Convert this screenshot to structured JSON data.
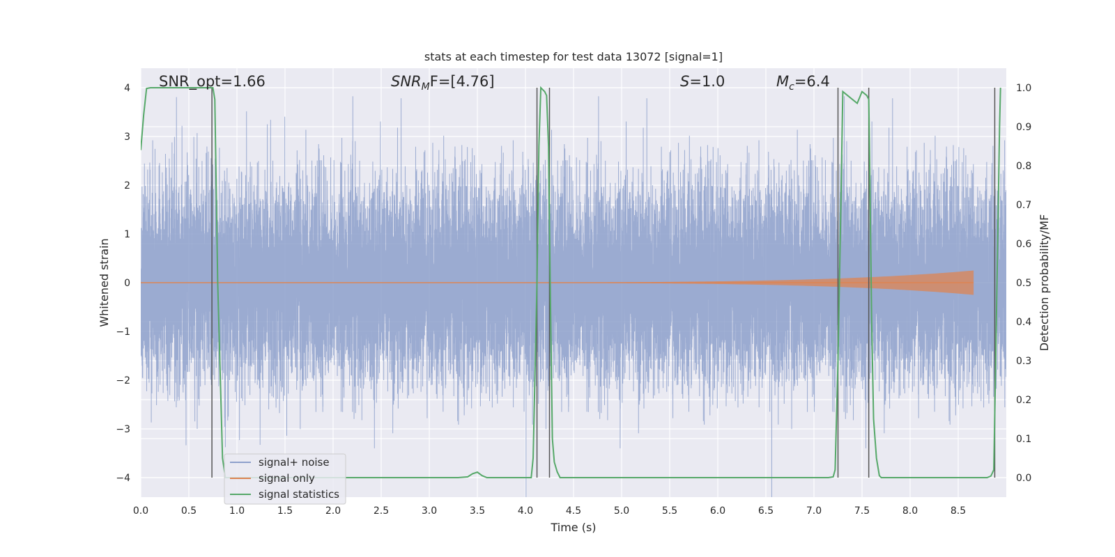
{
  "chart_data": {
    "type": "line",
    "title": "stats at each timestep for test data 13072 [signal=1]",
    "xlabel": "Time (s)",
    "ylabel_left": "Whitened strain",
    "ylabel_right": "Detection probability/MF",
    "xlim": [
      0.0,
      9.0
    ],
    "ylim_left": [
      -4.4,
      4.4
    ],
    "ylim_right": [
      -0.05,
      1.05
    ],
    "xticks": [
      0.0,
      0.5,
      1.0,
      1.5,
      2.0,
      2.5,
      3.0,
      3.5,
      4.0,
      4.5,
      5.0,
      5.5,
      6.0,
      6.5,
      7.0,
      7.5,
      8.0,
      8.5
    ],
    "xtick_labels": [
      "0.0",
      "0.5",
      "1.0",
      "1.5",
      "2.0",
      "2.5",
      "3.0",
      "3.5",
      "4.0",
      "4.5",
      "5.0",
      "5.5",
      "6.0",
      "6.5",
      "7.0",
      "7.5",
      "8.0",
      "8.5"
    ],
    "yticks_left": [
      4,
      3,
      2,
      1,
      0,
      -1,
      -2,
      -3,
      -4
    ],
    "ytick_labels_left": [
      "4",
      "3",
      "2",
      "1",
      "0",
      "−1",
      "−2",
      "−3",
      "−4"
    ],
    "yticks_right": [
      1.0,
      0.9,
      0.8,
      0.7,
      0.6,
      0.5,
      0.4,
      0.3,
      0.2,
      0.1,
      0.0
    ],
    "ytick_labels_right": [
      "1.0",
      "0.9",
      "0.8",
      "0.7",
      "0.6",
      "0.5",
      "0.4",
      "0.3",
      "0.2",
      "0.1",
      "0.0"
    ],
    "grid": true,
    "legend_position": "lower-left",
    "annotations": {
      "snr_opt": "SNR_opt=1.66",
      "snr_mf_base": "SNR",
      "snr_mf_sub": "M",
      "snr_mf_rest": "F=[4.76]",
      "s_base": "S",
      "s_rest": "=1.0",
      "mc_base": "M",
      "mc_sub": "c",
      "mc_rest": "=6.4"
    },
    "series": [
      {
        "name": "signal+ noise",
        "color": "#8da0cb",
        "sample_rate": 2048,
        "duration": 9.0,
        "std": 1.0,
        "plot_x_end": 9.0
      },
      {
        "name": "signal only",
        "color": "#dd8452",
        "x_start": 0.0,
        "x_end": 8.66,
        "envelope_start": 0.0,
        "envelope_end": 0.25
      },
      {
        "name": "signal statistics",
        "color": "#55a868",
        "axis": "right",
        "x": [
          0.0,
          0.03,
          0.06,
          0.1,
          0.2,
          0.3,
          0.5,
          0.7,
          0.73,
          0.75,
          0.77,
          0.8,
          0.85,
          0.88,
          0.9,
          1.0,
          2.0,
          3.0,
          3.3,
          3.4,
          3.45,
          3.5,
          3.55,
          3.6,
          3.7,
          4.0,
          4.06,
          4.08,
          4.12,
          4.14,
          4.16,
          4.18,
          4.2,
          4.22,
          4.24,
          4.26,
          4.28,
          4.3,
          4.33,
          4.36,
          4.4,
          5.0,
          6.0,
          7.0,
          7.15,
          7.2,
          7.22,
          7.25,
          7.28,
          7.3,
          7.35,
          7.4,
          7.45,
          7.5,
          7.55,
          7.57,
          7.58,
          7.6,
          7.62,
          7.65,
          7.68,
          7.7,
          8.0,
          8.5,
          8.8,
          8.84,
          8.87,
          8.89,
          8.91,
          8.93,
          8.94
        ],
        "y": [
          0.84,
          0.93,
          0.998,
          1.0,
          1.0,
          1.0,
          1.0,
          1.0,
          1.0,
          1.0,
          0.97,
          0.5,
          0.05,
          0.0,
          0.0,
          0.0,
          0.0,
          0.0,
          0.0,
          0.002,
          0.01,
          0.014,
          0.005,
          0.0,
          0.0,
          0.0,
          0.0,
          0.05,
          0.5,
          0.85,
          1.0,
          0.995,
          0.99,
          0.98,
          0.85,
          0.45,
          0.1,
          0.04,
          0.015,
          0.0,
          0.0,
          0.0,
          0.0,
          0.0,
          0.0,
          0.002,
          0.02,
          0.3,
          0.7,
          0.99,
          0.98,
          0.97,
          0.96,
          0.99,
          0.98,
          0.97,
          0.8,
          0.4,
          0.15,
          0.05,
          0.005,
          0.0,
          0.0,
          0.0,
          0.0,
          0.004,
          0.02,
          0.3,
          0.6,
          0.9,
          1.0
        ]
      }
    ],
    "vertical_lines": [
      0.74,
      4.12,
      4.25,
      7.25,
      7.57,
      8.88
    ]
  }
}
